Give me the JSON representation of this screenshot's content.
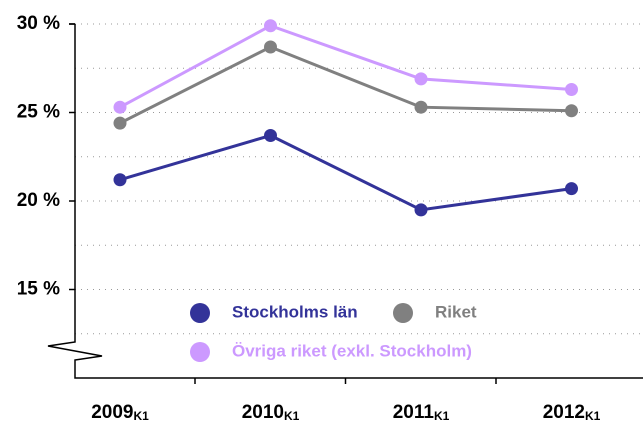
{
  "chart_data": {
    "type": "line",
    "categories": [
      "2009",
      "2010",
      "2011",
      "2012"
    ],
    "category_subscript": "K1",
    "series": [
      {
        "name": "Stockholms län",
        "color": "#333399",
        "values": [
          21.2,
          23.7,
          19.5,
          20.7
        ]
      },
      {
        "name": "Riket",
        "color": "#808080",
        "values": [
          24.4,
          28.7,
          25.3,
          25.1
        ]
      },
      {
        "name": "Övriga riket (exkl. Stockholm)",
        "color": "#cc99ff",
        "values": [
          25.3,
          29.9,
          26.9,
          26.3
        ]
      }
    ],
    "ylim": [
      10,
      30
    ],
    "yticks": [
      {
        "value": 15,
        "label": "15 %"
      },
      {
        "value": 20,
        "label": "20 %"
      },
      {
        "value": 25,
        "label": "25 %"
      },
      {
        "value": 30,
        "label": "30 %"
      }
    ],
    "minor_yticks": [
      12.5,
      17.5,
      22.5,
      27.5
    ],
    "grid": true
  }
}
